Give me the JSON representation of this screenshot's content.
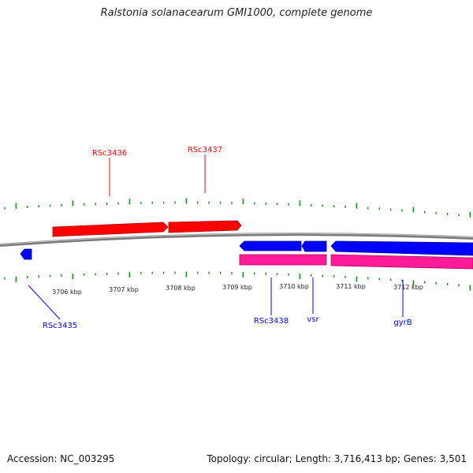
{
  "title": "Ralstonia solanacearum GMI1000, complete genome",
  "footer": {
    "accession": "Accession: NC_003295",
    "summary": "Topology: circular; Length: 3,716,413 bp; Genes: 3,501"
  },
  "colors": {
    "forward_gene": "#ff0000",
    "reverse_gene": "#0000ff",
    "reverse_cds": "#ff1a99",
    "backbone": "#8c8c8c",
    "ticks": "#1a8c1a"
  },
  "scale_labels": [
    "3706 kbp",
    "3707 kbp",
    "3708 kbp",
    "3709 kbp",
    "3710 kbp",
    "3711 kbp",
    "3712 kbp"
  ],
  "gene_labels": [
    {
      "name": "RSc3436",
      "strand": "forward"
    },
    {
      "name": "RSc3437",
      "strand": "forward"
    },
    {
      "name": "RSc3435",
      "strand": "reverse"
    },
    {
      "name": "RSc3438",
      "strand": "reverse"
    },
    {
      "name": "vsr",
      "strand": "reverse"
    },
    {
      "name": "gyrB",
      "strand": "reverse"
    }
  ]
}
